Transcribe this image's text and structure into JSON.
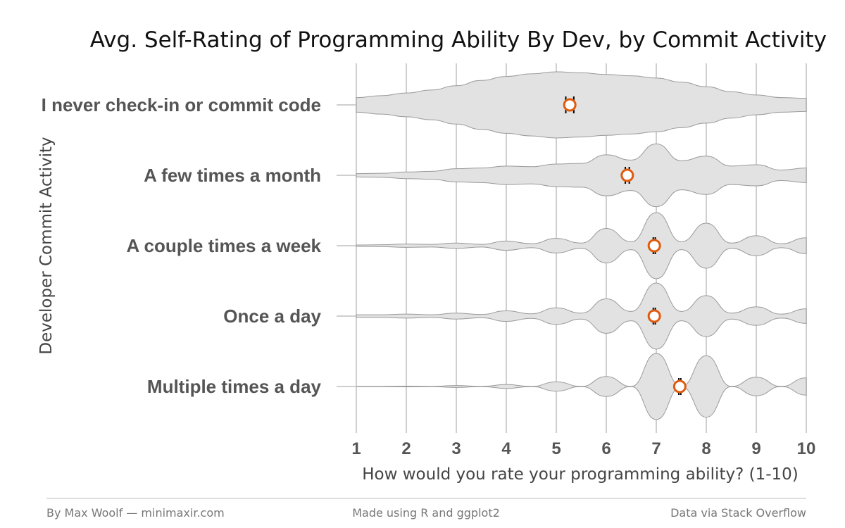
{
  "colors": {
    "accent": "#e05a0c",
    "violin_fill": "#e2e2e2",
    "violin_stroke": "#9a9a9a",
    "grid": "#cfcfcf"
  },
  "chart_data": {
    "type": "violin",
    "title": "Avg. Self-Rating of Programming Ability By Dev, by Commit Activity",
    "xlabel": "How would you rate your programming ability? (1-10)",
    "ylabel": "Developer Commit Activity",
    "xlim": [
      1,
      10
    ],
    "xticks": [
      "1",
      "2",
      "3",
      "4",
      "5",
      "6",
      "7",
      "8",
      "9",
      "10"
    ],
    "categories": [
      "I never check-in or commit code",
      "A few times a month",
      "A couple times a week",
      "Once a day",
      "Multiple times a day"
    ],
    "means": [
      5.27,
      6.42,
      6.96,
      6.96,
      7.47
    ],
    "errors": [
      0.08,
      0.04,
      0.02,
      0.02,
      0.02
    ],
    "density_x": [
      1,
      1.5,
      2,
      2.5,
      3,
      3.5,
      4,
      4.5,
      5,
      5.5,
      6,
      6.5,
      7,
      7.5,
      8,
      8.5,
      9,
      9.5,
      10
    ],
    "densities": [
      [
        0.22,
        0.28,
        0.36,
        0.45,
        0.58,
        0.74,
        0.86,
        0.94,
        1.0,
        0.97,
        0.92,
        0.88,
        0.81,
        0.69,
        0.55,
        0.4,
        0.3,
        0.22,
        0.2
      ],
      [
        0.05,
        0.06,
        0.1,
        0.12,
        0.2,
        0.22,
        0.28,
        0.26,
        0.34,
        0.36,
        0.62,
        0.46,
        0.95,
        0.44,
        0.58,
        0.28,
        0.32,
        0.16,
        0.22
      ],
      [
        0.02,
        0.03,
        0.05,
        0.04,
        0.08,
        0.04,
        0.14,
        0.06,
        0.22,
        0.08,
        0.52,
        0.12,
        1.0,
        0.12,
        0.68,
        0.08,
        0.3,
        0.06,
        0.24
      ],
      [
        0.04,
        0.04,
        0.06,
        0.04,
        0.09,
        0.05,
        0.16,
        0.07,
        0.25,
        0.09,
        0.52,
        0.14,
        1.0,
        0.14,
        0.62,
        0.09,
        0.28,
        0.06,
        0.22
      ],
      [
        0.0,
        0.0,
        0.01,
        0.0,
        0.03,
        0.0,
        0.06,
        0.0,
        0.14,
        0.0,
        0.3,
        0.0,
        1.0,
        0.0,
        0.93,
        0.0,
        0.28,
        0.0,
        0.26
      ]
    ]
  },
  "footer": {
    "left": "By Max Woolf — minimaxir.com",
    "center": "Made using R and ggplot2",
    "right": "Data via Stack Overflow"
  }
}
